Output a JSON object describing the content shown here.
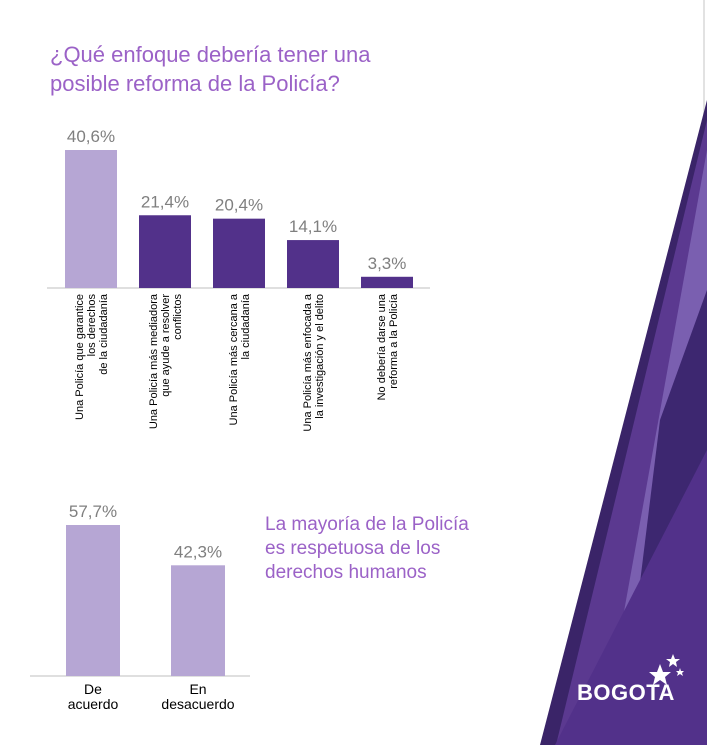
{
  "title_line1": "¿Qué enfoque debería tener una",
  "title_line2": "posible reforma de la Policía?",
  "callout": {
    "line1": "La mayoría de la Policía",
    "line2": "es respetuosa de los",
    "line3": "derechos humanos"
  },
  "logo": {
    "text": "BOGOTA"
  },
  "colors": {
    "light_purple": "#b6a6d4",
    "dark_purple": "#52318a",
    "title_purple": "#9b62c7",
    "deco_purple": "#5b3990"
  },
  "chart_data": [
    {
      "type": "bar",
      "categories": [
        [
          "Una Policía que garantice",
          "los derechos",
          "de la ciudadanía"
        ],
        [
          "Una Policía más mediadora",
          "que ayude a resolver",
          "conflictos"
        ],
        [
          "Una Policía más cercana a",
          "la ciudadanía"
        ],
        [
          "Una Policía más enfocada a",
          "la investigación y el delito"
        ],
        [
          "No debería darse una",
          "reforma a la Policía"
        ]
      ],
      "values": [
        40.6,
        21.4,
        20.4,
        14.1,
        3.3
      ],
      "value_labels": [
        "40,6%",
        "21,4%",
        "20,4%",
        "14,1%",
        "3,3%"
      ],
      "colors": [
        "#b6a6d4",
        "#52318a",
        "#52318a",
        "#52318a",
        "#52318a"
      ],
      "ylim": [
        0,
        40.6
      ]
    },
    {
      "type": "bar",
      "categories": [
        "De acuerdo",
        "En desacuerdo"
      ],
      "category_lines": [
        [
          "De",
          "acuerdo"
        ],
        [
          "En",
          "desacuerdo"
        ]
      ],
      "values": [
        57.7,
        42.3
      ],
      "value_labels": [
        "57,7%",
        "42,3%"
      ],
      "colors": [
        "#b6a6d4",
        "#b6a6d4"
      ],
      "ylim": [
        0,
        57.7
      ]
    }
  ]
}
